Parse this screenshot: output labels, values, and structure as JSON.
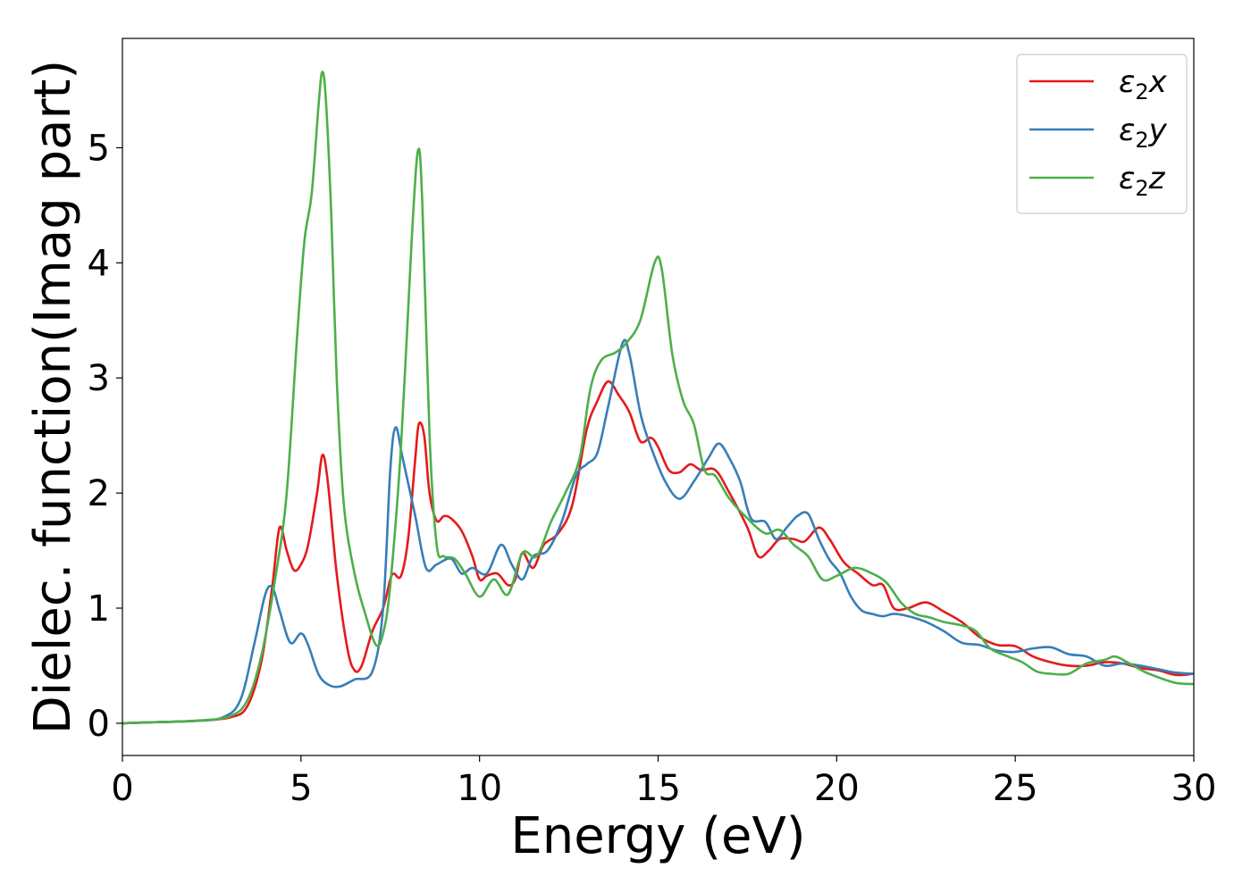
{
  "chart_data": {
    "type": "line",
    "title": "",
    "xlabel": "Energy (eV)",
    "ylabel": "Dielec. function(Imag part)",
    "xlim": [
      0,
      30
    ],
    "ylim": [
      -0.28,
      5.95
    ],
    "xticks": [
      0,
      5,
      10,
      15,
      20,
      25,
      30
    ],
    "yticks": [
      0,
      1,
      2,
      3,
      4,
      5
    ],
    "grid": false,
    "legend_position": "top-right",
    "series": [
      {
        "name": "ε2x",
        "label_base": "ε",
        "label_sub": "2",
        "label_tail": "x",
        "color": "#e41a1c",
        "points": [
          [
            0,
            0
          ],
          [
            1,
            0.01
          ],
          [
            2,
            0.02
          ],
          [
            3,
            0.05
          ],
          [
            3.5,
            0.15
          ],
          [
            3.9,
            0.55
          ],
          [
            4.2,
            1.2
          ],
          [
            4.4,
            1.7
          ],
          [
            4.6,
            1.5
          ],
          [
            4.8,
            1.33
          ],
          [
            5.0,
            1.38
          ],
          [
            5.2,
            1.55
          ],
          [
            5.45,
            2.0
          ],
          [
            5.6,
            2.33
          ],
          [
            5.75,
            2.1
          ],
          [
            6.0,
            1.3
          ],
          [
            6.3,
            0.65
          ],
          [
            6.5,
            0.46
          ],
          [
            6.7,
            0.5
          ],
          [
            7.0,
            0.8
          ],
          [
            7.3,
            1.0
          ],
          [
            7.5,
            1.25
          ],
          [
            7.6,
            1.3
          ],
          [
            7.8,
            1.28
          ],
          [
            8.0,
            1.6
          ],
          [
            8.2,
            2.3
          ],
          [
            8.3,
            2.6
          ],
          [
            8.45,
            2.5
          ],
          [
            8.6,
            2.0
          ],
          [
            8.8,
            1.76
          ],
          [
            9.0,
            1.8
          ],
          [
            9.2,
            1.78
          ],
          [
            9.5,
            1.67
          ],
          [
            9.8,
            1.45
          ],
          [
            10.0,
            1.25
          ],
          [
            10.2,
            1.28
          ],
          [
            10.5,
            1.3
          ],
          [
            10.8,
            1.2
          ],
          [
            11.0,
            1.25
          ],
          [
            11.2,
            1.48
          ],
          [
            11.5,
            1.35
          ],
          [
            11.8,
            1.55
          ],
          [
            12.2,
            1.65
          ],
          [
            12.6,
            1.9
          ],
          [
            13.0,
            2.55
          ],
          [
            13.3,
            2.8
          ],
          [
            13.6,
            2.97
          ],
          [
            13.9,
            2.85
          ],
          [
            14.2,
            2.7
          ],
          [
            14.5,
            2.45
          ],
          [
            14.8,
            2.48
          ],
          [
            15.0,
            2.4
          ],
          [
            15.3,
            2.2
          ],
          [
            15.6,
            2.18
          ],
          [
            15.9,
            2.25
          ],
          [
            16.2,
            2.2
          ],
          [
            16.6,
            2.2
          ],
          [
            17.0,
            2.0
          ],
          [
            17.5,
            1.7
          ],
          [
            17.8,
            1.45
          ],
          [
            18.1,
            1.5
          ],
          [
            18.4,
            1.6
          ],
          [
            18.8,
            1.6
          ],
          [
            19.1,
            1.58
          ],
          [
            19.5,
            1.7
          ],
          [
            19.8,
            1.6
          ],
          [
            20.2,
            1.4
          ],
          [
            20.6,
            1.3
          ],
          [
            21.0,
            1.2
          ],
          [
            21.3,
            1.2
          ],
          [
            21.6,
            1.0
          ],
          [
            22.0,
            1.0
          ],
          [
            22.5,
            1.05
          ],
          [
            23.0,
            0.97
          ],
          [
            23.5,
            0.88
          ],
          [
            24.0,
            0.75
          ],
          [
            24.5,
            0.68
          ],
          [
            25.0,
            0.67
          ],
          [
            25.5,
            0.58
          ],
          [
            26.0,
            0.53
          ],
          [
            26.5,
            0.5
          ],
          [
            27.0,
            0.5
          ],
          [
            27.5,
            0.53
          ],
          [
            28.0,
            0.52
          ],
          [
            28.5,
            0.48
          ],
          [
            29.0,
            0.46
          ],
          [
            29.5,
            0.42
          ],
          [
            30,
            0.43
          ]
        ]
      },
      {
        "name": "ε2y",
        "label_base": "ε",
        "label_sub": "2",
        "label_tail": "y",
        "color": "#377eb8",
        "points": [
          [
            0,
            0
          ],
          [
            1,
            0.01
          ],
          [
            2,
            0.02
          ],
          [
            2.8,
            0.05
          ],
          [
            3.3,
            0.2
          ],
          [
            3.7,
            0.7
          ],
          [
            4.0,
            1.12
          ],
          [
            4.2,
            1.18
          ],
          [
            4.4,
            0.98
          ],
          [
            4.7,
            0.7
          ],
          [
            5.0,
            0.78
          ],
          [
            5.2,
            0.68
          ],
          [
            5.5,
            0.42
          ],
          [
            5.8,
            0.33
          ],
          [
            6.1,
            0.32
          ],
          [
            6.5,
            0.38
          ],
          [
            7.0,
            0.45
          ],
          [
            7.3,
            1.0
          ],
          [
            7.5,
            2.2
          ],
          [
            7.65,
            2.57
          ],
          [
            7.85,
            2.3
          ],
          [
            8.2,
            1.8
          ],
          [
            8.5,
            1.35
          ],
          [
            8.8,
            1.38
          ],
          [
            9.2,
            1.43
          ],
          [
            9.5,
            1.3
          ],
          [
            9.8,
            1.35
          ],
          [
            10.2,
            1.3
          ],
          [
            10.6,
            1.55
          ],
          [
            10.9,
            1.38
          ],
          [
            11.2,
            1.25
          ],
          [
            11.5,
            1.45
          ],
          [
            11.9,
            1.5
          ],
          [
            12.3,
            1.75
          ],
          [
            12.7,
            2.15
          ],
          [
            13.0,
            2.25
          ],
          [
            13.3,
            2.35
          ],
          [
            13.6,
            2.75
          ],
          [
            14.0,
            3.3
          ],
          [
            14.2,
            3.2
          ],
          [
            14.5,
            2.7
          ],
          [
            14.8,
            2.4
          ],
          [
            15.2,
            2.1
          ],
          [
            15.6,
            1.95
          ],
          [
            16.0,
            2.1
          ],
          [
            16.4,
            2.3
          ],
          [
            16.7,
            2.43
          ],
          [
            17.0,
            2.3
          ],
          [
            17.3,
            2.1
          ],
          [
            17.6,
            1.78
          ],
          [
            18.0,
            1.75
          ],
          [
            18.3,
            1.6
          ],
          [
            18.6,
            1.7
          ],
          [
            18.9,
            1.8
          ],
          [
            19.2,
            1.82
          ],
          [
            19.5,
            1.6
          ],
          [
            19.8,
            1.42
          ],
          [
            20.1,
            1.3
          ],
          [
            20.4,
            1.1
          ],
          [
            20.7,
            0.98
          ],
          [
            21.0,
            0.95
          ],
          [
            21.3,
            0.93
          ],
          [
            21.6,
            0.95
          ],
          [
            22.0,
            0.93
          ],
          [
            22.5,
            0.88
          ],
          [
            23.0,
            0.8
          ],
          [
            23.5,
            0.7
          ],
          [
            24.0,
            0.68
          ],
          [
            24.5,
            0.63
          ],
          [
            25.0,
            0.62
          ],
          [
            25.5,
            0.65
          ],
          [
            26.0,
            0.66
          ],
          [
            26.5,
            0.6
          ],
          [
            27.0,
            0.58
          ],
          [
            27.5,
            0.5
          ],
          [
            28.0,
            0.52
          ],
          [
            28.5,
            0.5
          ],
          [
            29.0,
            0.47
          ],
          [
            29.5,
            0.44
          ],
          [
            30,
            0.43
          ]
        ]
      },
      {
        "name": "ε2z",
        "label_base": "ε",
        "label_sub": "2",
        "label_tail": "z",
        "color": "#4daf4a",
        "points": [
          [
            0,
            0
          ],
          [
            1,
            0.01
          ],
          [
            2,
            0.02
          ],
          [
            3,
            0.06
          ],
          [
            3.5,
            0.2
          ],
          [
            3.9,
            0.6
          ],
          [
            4.3,
            1.3
          ],
          [
            4.6,
            2.0
          ],
          [
            4.9,
            3.4
          ],
          [
            5.1,
            4.2
          ],
          [
            5.3,
            4.6
          ],
          [
            5.5,
            5.4
          ],
          [
            5.6,
            5.66
          ],
          [
            5.7,
            5.4
          ],
          [
            5.85,
            4.4
          ],
          [
            6.0,
            3.0
          ],
          [
            6.2,
            1.9
          ],
          [
            6.5,
            1.3
          ],
          [
            6.8,
            0.95
          ],
          [
            7.1,
            0.68
          ],
          [
            7.3,
            0.78
          ],
          [
            7.5,
            1.2
          ],
          [
            7.8,
            2.4
          ],
          [
            8.1,
            4.2
          ],
          [
            8.28,
            4.98
          ],
          [
            8.4,
            4.5
          ],
          [
            8.6,
            2.5
          ],
          [
            8.8,
            1.55
          ],
          [
            9.0,
            1.45
          ],
          [
            9.3,
            1.43
          ],
          [
            9.6,
            1.3
          ],
          [
            10.0,
            1.1
          ],
          [
            10.4,
            1.25
          ],
          [
            10.8,
            1.12
          ],
          [
            11.2,
            1.48
          ],
          [
            11.6,
            1.45
          ],
          [
            12.0,
            1.75
          ],
          [
            12.4,
            2.0
          ],
          [
            12.8,
            2.3
          ],
          [
            13.1,
            2.9
          ],
          [
            13.4,
            3.15
          ],
          [
            13.8,
            3.22
          ],
          [
            14.1,
            3.3
          ],
          [
            14.5,
            3.5
          ],
          [
            14.9,
            4.0
          ],
          [
            15.1,
            3.95
          ],
          [
            15.4,
            3.2
          ],
          [
            15.7,
            2.8
          ],
          [
            16.0,
            2.6
          ],
          [
            16.3,
            2.2
          ],
          [
            16.6,
            2.15
          ],
          [
            17.0,
            1.95
          ],
          [
            17.5,
            1.78
          ],
          [
            18.0,
            1.65
          ],
          [
            18.4,
            1.68
          ],
          [
            18.8,
            1.55
          ],
          [
            19.2,
            1.45
          ],
          [
            19.6,
            1.25
          ],
          [
            20.0,
            1.28
          ],
          [
            20.5,
            1.35
          ],
          [
            21.0,
            1.3
          ],
          [
            21.4,
            1.22
          ],
          [
            21.8,
            1.05
          ],
          [
            22.2,
            0.95
          ],
          [
            22.6,
            0.92
          ],
          [
            23.0,
            0.88
          ],
          [
            23.5,
            0.85
          ],
          [
            23.9,
            0.8
          ],
          [
            24.3,
            0.65
          ],
          [
            24.8,
            0.58
          ],
          [
            25.2,
            0.53
          ],
          [
            25.6,
            0.45
          ],
          [
            26.0,
            0.43
          ],
          [
            26.5,
            0.43
          ],
          [
            27.0,
            0.52
          ],
          [
            27.5,
            0.55
          ],
          [
            27.8,
            0.58
          ],
          [
            28.2,
            0.52
          ],
          [
            28.6,
            0.45
          ],
          [
            29.0,
            0.4
          ],
          [
            29.5,
            0.35
          ],
          [
            30,
            0.34
          ]
        ]
      }
    ]
  }
}
